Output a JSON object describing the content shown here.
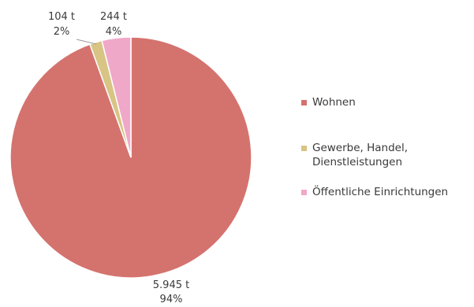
{
  "colors": {
    "wohnen": "#d4736e",
    "gewerbe": "#d8c484",
    "oeffentlich": "#f0a8c8"
  },
  "chart_data": {
    "type": "pie",
    "title": "",
    "start_angle_deg": 0,
    "direction": "counterclockwise",
    "slices": [
      {
        "label": "Wohnen",
        "value": 5945,
        "value_label": "5.945 t",
        "percent_label": "94%",
        "color": "#d4736e"
      },
      {
        "label": "Gewerbe, Handel, Dienstleistungen",
        "value": 104,
        "value_label": "104 t",
        "percent_label": "2%",
        "color": "#d8c484"
      },
      {
        "label": "Öffentliche Einrichtungen",
        "value": 244,
        "value_label": "244 t",
        "percent_label": "4%",
        "color": "#f0a8c8"
      }
    ],
    "legend": {
      "position": "right",
      "items": [
        {
          "label_lines": [
            "Wohnen"
          ],
          "color": "#d4736e"
        },
        {
          "label_lines": [
            "Gewerbe, Handel,",
            "Dienstleistungen"
          ],
          "color": "#d8c484"
        },
        {
          "label_lines": [
            "Öffentliche Einrichtungen"
          ],
          "color": "#f0a8c8"
        }
      ]
    }
  }
}
